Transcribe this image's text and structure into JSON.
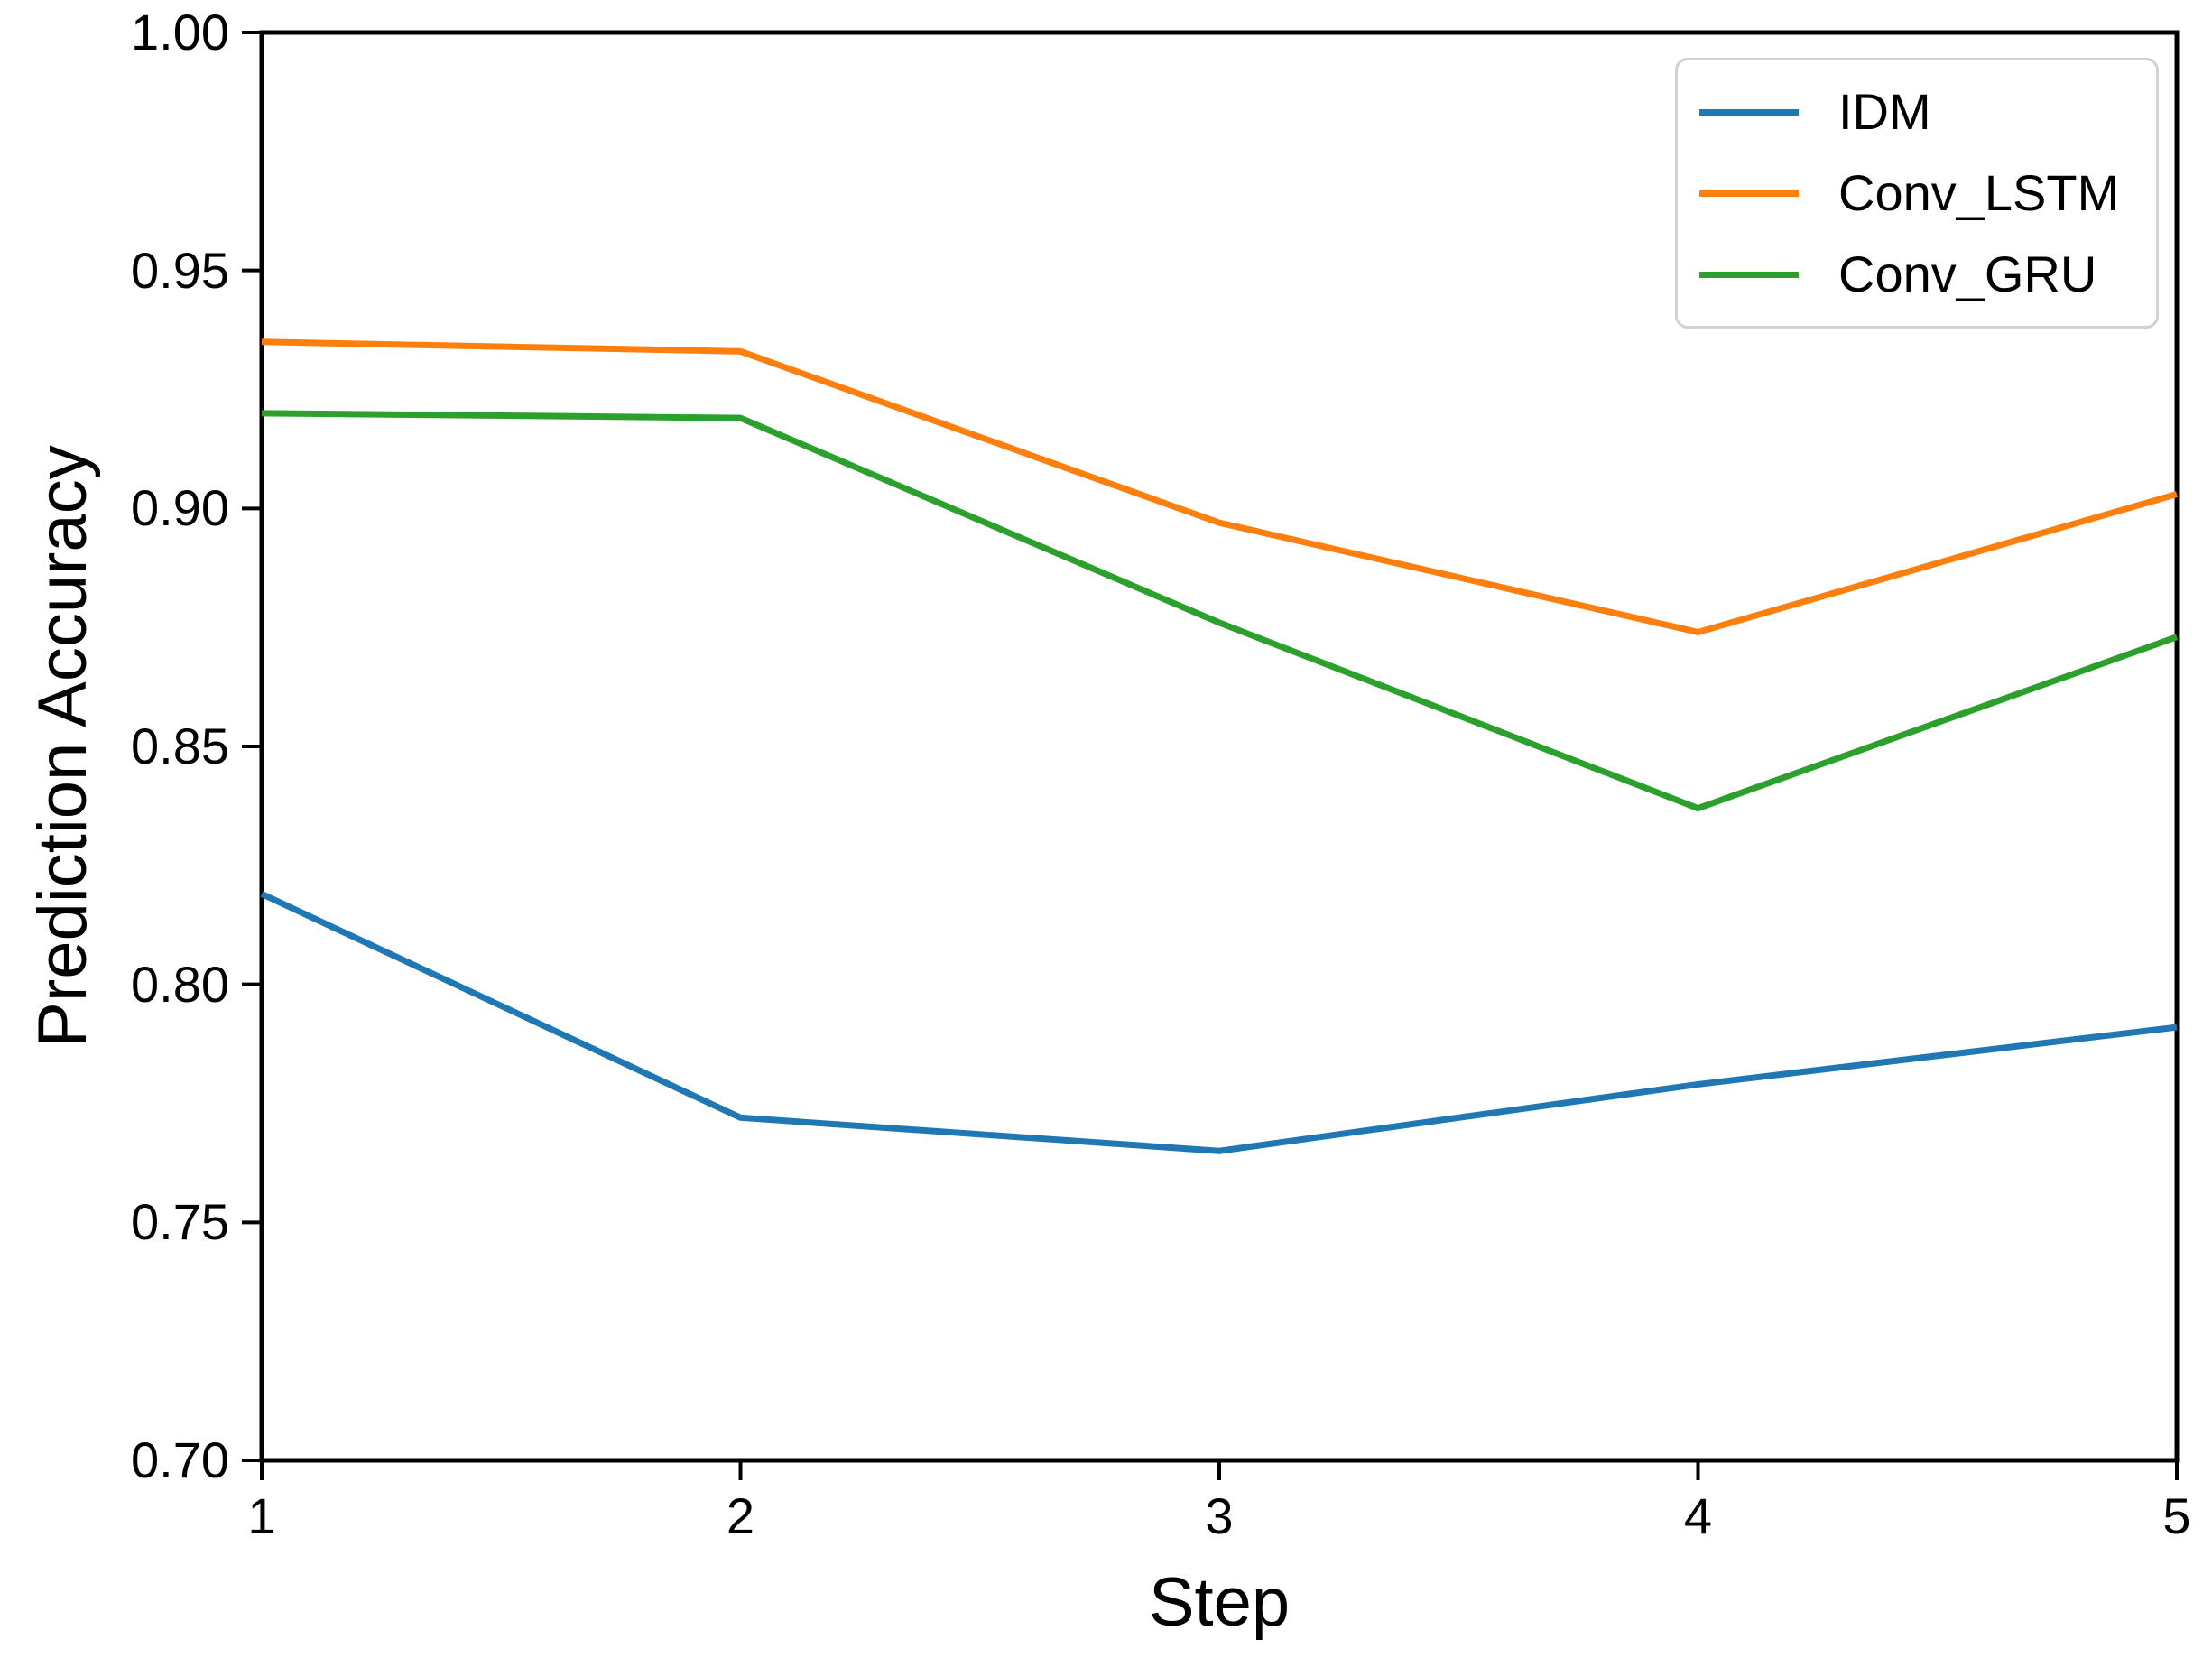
{
  "chart_data": {
    "type": "line",
    "title": "",
    "xlabel": "Step",
    "ylabel": "Prediction Accuracy",
    "x": [
      1,
      2,
      3,
      4,
      5
    ],
    "xlim": [
      1,
      5
    ],
    "ylim": [
      0.7,
      1.0
    ],
    "xticks": [
      1,
      2,
      3,
      4,
      5
    ],
    "xtick_labels": [
      "1",
      "2",
      "3",
      "4",
      "5"
    ],
    "yticks": [
      0.7,
      0.75,
      0.8,
      0.85,
      0.9,
      0.95,
      1.0
    ],
    "ytick_labels": [
      "0.70",
      "0.75",
      "0.80",
      "0.85",
      "0.90",
      "0.95",
      "1.00"
    ],
    "grid": false,
    "legend_position": "upper right",
    "series": [
      {
        "name": "IDM",
        "color": "#1f77b4",
        "values": [
          0.819,
          0.772,
          0.765,
          0.779,
          0.791
        ]
      },
      {
        "name": "Conv_LSTM",
        "color": "#ff7f0e",
        "values": [
          0.935,
          0.933,
          0.897,
          0.874,
          0.903
        ]
      },
      {
        "name": "Conv_GRU",
        "color": "#2ca02c",
        "values": [
          0.92,
          0.919,
          0.876,
          0.837,
          0.873
        ]
      }
    ]
  }
}
